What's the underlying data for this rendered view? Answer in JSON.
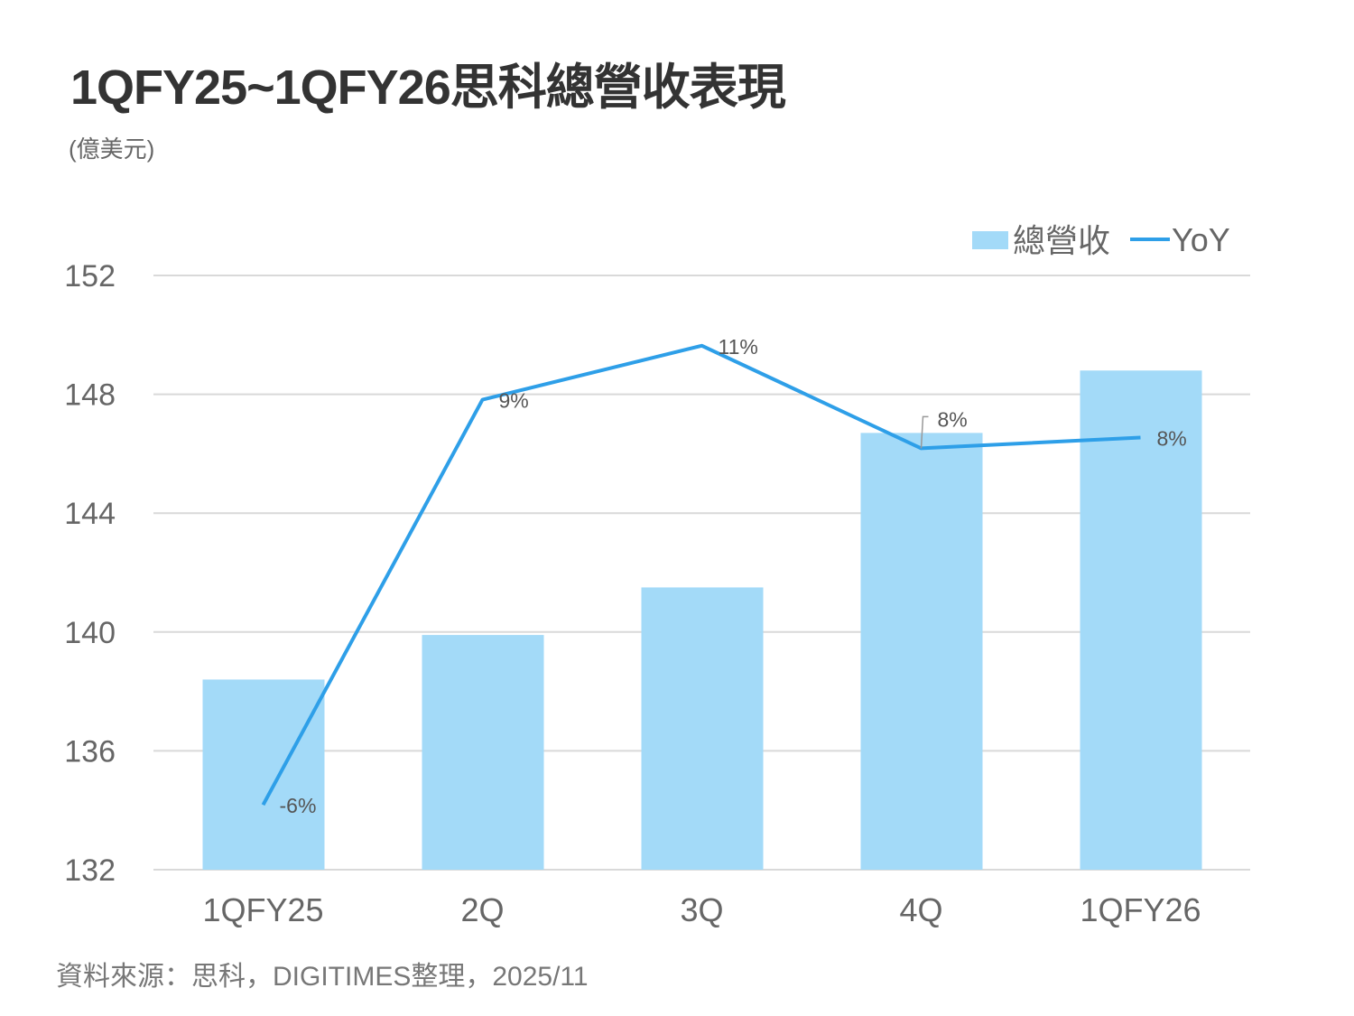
{
  "title": "1QFY25~1QFY26思科總營收表現",
  "unit": "(億美元)",
  "source": "資料來源：思科，DIGITIMES整理，2025/11",
  "chart_data": {
    "type": "bar",
    "title": "1QFY25~1QFY26思科總營收表現",
    "ylabel": "(億美元)",
    "categories": [
      "1QFY25",
      "2Q",
      "3Q",
      "4Q",
      "1QFY26"
    ],
    "ylim": [
      132,
      152
    ],
    "yticks": [
      132,
      136,
      140,
      144,
      148,
      152
    ],
    "grid": true,
    "legend_position": "top-right",
    "series": [
      {
        "name": "總營收",
        "type": "bar",
        "color": "#a3daf8",
        "values": [
          138.4,
          139.9,
          141.5,
          146.7,
          148.8
        ]
      },
      {
        "name": "YoY",
        "type": "line",
        "color": "#2e9fe8",
        "axis": "secondary",
        "ylim": [
          -8,
          14
        ],
        "values": [
          -5.6,
          9.4,
          11.4,
          7.6,
          8.0
        ],
        "labels": [
          "-6%",
          "9%",
          "11%",
          "8%",
          "8%"
        ]
      }
    ]
  }
}
